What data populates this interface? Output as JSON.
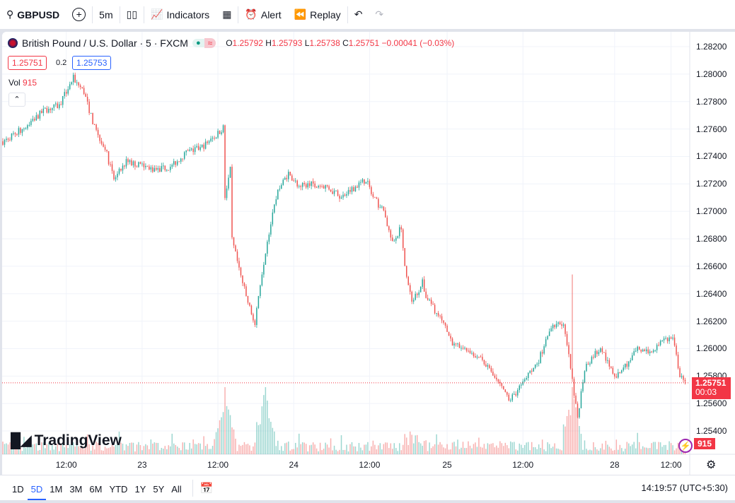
{
  "toolbar": {
    "symbol": "GBPUSD",
    "interval": "5m",
    "indicators": "Indicators",
    "alert": "Alert",
    "replay": "Replay"
  },
  "legend": {
    "title": "British Pound / U.S. Dollar · 5 · FXCM",
    "o_label": "O",
    "o": "1.25792",
    "h_label": "H",
    "h": "1.25793",
    "l_label": "L",
    "l": "1.25738",
    "c_label": "C",
    "c": "1.25751",
    "change": "−0.00041 (−0.03%)",
    "sell": "1.25751",
    "spread": "0.2",
    "buy": "1.25753"
  },
  "volume": {
    "label": "Vol",
    "value": "915"
  },
  "price_tag": {
    "price": "1.25751",
    "countdown": "00:03"
  },
  "logo": "TradingView",
  "bottom": {
    "ranges": [
      "1D",
      "5D",
      "1M",
      "3M",
      "6M",
      "YTD",
      "1Y",
      "5Y",
      "All"
    ],
    "active": "5D",
    "clock": "14:19:57 (UTC+5:30)"
  },
  "colors": {
    "up": "#26a69a",
    "down": "#ef5350",
    "accent": "#2962ff",
    "tag": "#f23645"
  },
  "chart_data": {
    "type": "candlestick",
    "title": "British Pound / U.S. Dollar · 5 · FXCM",
    "yticks": [
      "1.28200",
      "1.28000",
      "1.27800",
      "1.27600",
      "1.27400",
      "1.27200",
      "1.27000",
      "1.26800",
      "1.26600",
      "1.26400",
      "1.26200",
      "1.26000",
      "1.25800",
      "1.25600",
      "1.25400"
    ],
    "ylim": [
      1.2528,
      1.2834
    ],
    "xticks": [
      {
        "label": "12:00",
        "bar": 36
      },
      {
        "label": "23",
        "bar": 79
      },
      {
        "label": "12:00",
        "bar": 122
      },
      {
        "label": "24",
        "bar": 165
      },
      {
        "label": "12:00",
        "bar": 208
      },
      {
        "label": "25",
        "bar": 252
      },
      {
        "label": "12:00",
        "bar": 295
      },
      {
        "label": "28",
        "bar": 347
      },
      {
        "label": "12:00",
        "bar": 379
      }
    ],
    "total_bars": 390,
    "path": [
      [
        0,
        1.2751
      ],
      [
        12,
        1.2761
      ],
      [
        24,
        1.2774
      ],
      [
        32,
        1.2777
      ],
      [
        40,
        1.2797
      ],
      [
        46,
        1.2787
      ],
      [
        52,
        1.2761
      ],
      [
        58,
        1.2746
      ],
      [
        63,
        1.2723
      ],
      [
        70,
        1.2736
      ],
      [
        80,
        1.2733
      ],
      [
        88,
        1.273
      ],
      [
        96,
        1.2733
      ],
      [
        104,
        1.2743
      ],
      [
        112,
        1.2746
      ],
      [
        120,
        1.2754
      ],
      [
        125,
        1.2761
      ],
      [
        126,
        1.271
      ],
      [
        129,
        1.273
      ],
      [
        130,
        1.2679
      ],
      [
        134,
        1.2658
      ],
      [
        138,
        1.2638
      ],
      [
        143,
        1.2617
      ],
      [
        146,
        1.2648
      ],
      [
        150,
        1.2679
      ],
      [
        156,
        1.2715
      ],
      [
        162,
        1.2728
      ],
      [
        168,
        1.2718
      ],
      [
        176,
        1.272
      ],
      [
        184,
        1.2718
      ],
      [
        192,
        1.271
      ],
      [
        200,
        1.2718
      ],
      [
        206,
        1.2723
      ],
      [
        210,
        1.271
      ],
      [
        216,
        1.27
      ],
      [
        221,
        1.2676
      ],
      [
        226,
        1.2689
      ],
      [
        228,
        1.2658
      ],
      [
        232,
        1.2633
      ],
      [
        238,
        1.2648
      ],
      [
        240,
        1.2638
      ],
      [
        248,
        1.2622
      ],
      [
        256,
        1.2602
      ],
      [
        264,
        1.2599
      ],
      [
        272,
        1.2592
      ],
      [
        280,
        1.2576
      ],
      [
        288,
        1.2563
      ],
      [
        296,
        1.2576
      ],
      [
        304,
        1.2592
      ],
      [
        310,
        1.2612
      ],
      [
        314,
        1.262
      ],
      [
        318,
        1.2617
      ],
      [
        322,
        1.2586
      ],
      [
        324,
        1.2565
      ],
      [
        326,
        1.255
      ],
      [
        330,
        1.2586
      ],
      [
        336,
        1.2597
      ],
      [
        340,
        1.2599
      ],
      [
        344,
        1.2586
      ],
      [
        348,
        1.2579
      ],
      [
        352,
        1.2586
      ],
      [
        360,
        1.2599
      ],
      [
        368,
        1.2597
      ],
      [
        376,
        1.2607
      ],
      [
        380,
        1.2607
      ],
      [
        384,
        1.2581
      ],
      [
        387,
        1.2574
      ]
    ],
    "spike": {
      "bar": 323,
      "high": 1.2654
    },
    "volume_spikes": [
      126,
      149,
      323
    ]
  }
}
